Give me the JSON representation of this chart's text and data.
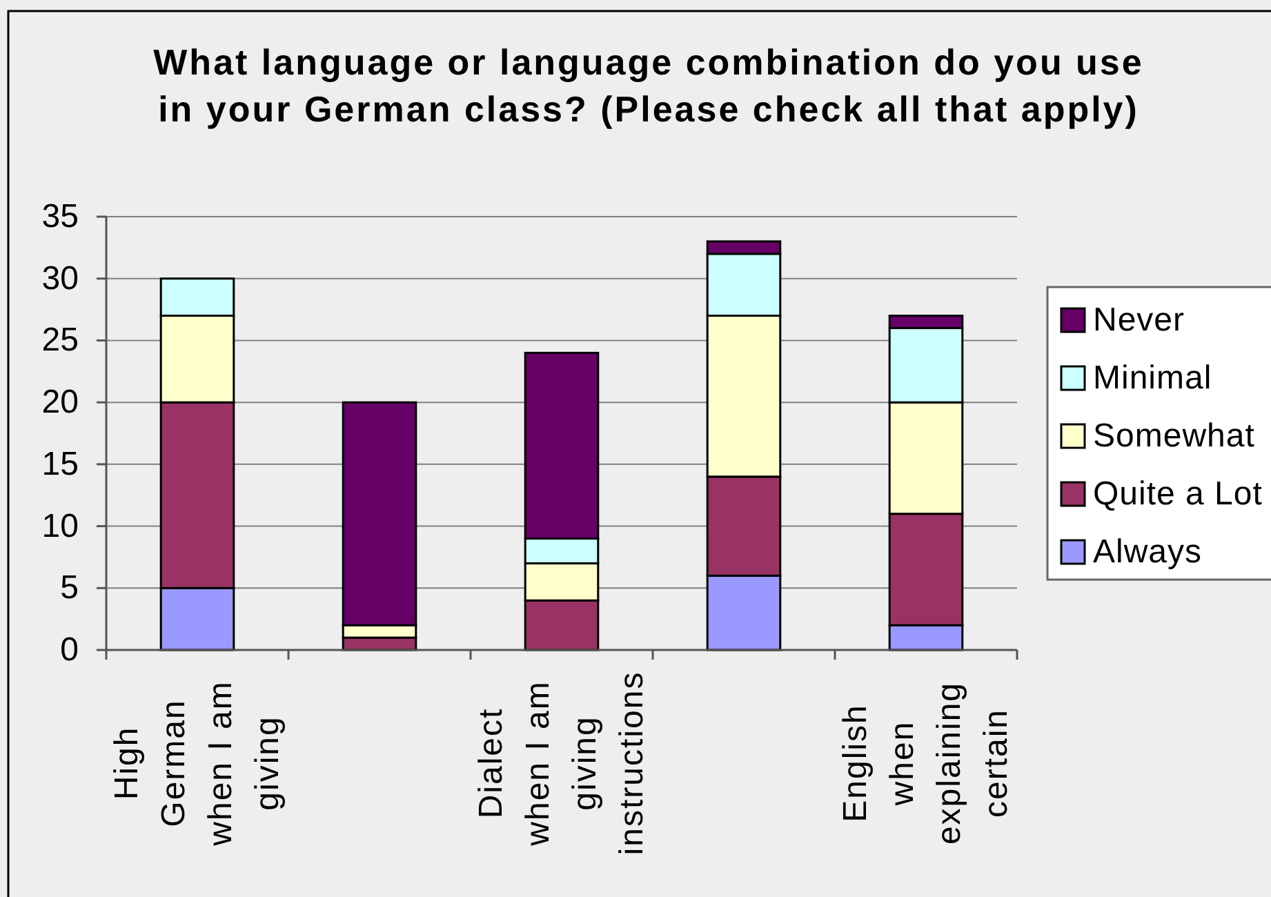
{
  "chart_data": {
    "type": "bar",
    "title": "What language or language combination do you use in your German class? (Please check all that apply)",
    "categories": [
      "High German when I am giving",
      null,
      "Dialect when I am giving instructions",
      null,
      "English when explaining certain"
    ],
    "stacked": true,
    "series": [
      {
        "name": "Always",
        "color": "#9999ff",
        "values": [
          5,
          0,
          0,
          6,
          2
        ]
      },
      {
        "name": "Quite a Lot",
        "color": "#993366",
        "values": [
          15,
          1,
          4,
          8,
          9
        ]
      },
      {
        "name": "Somewhat",
        "color": "#ffffcc",
        "values": [
          7,
          1,
          3,
          13,
          9
        ]
      },
      {
        "name": "Minimal",
        "color": "#ccffff",
        "values": [
          3,
          0,
          2,
          5,
          6
        ]
      },
      {
        "name": "Never",
        "color": "#660066",
        "values": [
          0,
          18,
          15,
          1,
          1
        ]
      }
    ],
    "ylim": [
      0,
      35
    ],
    "yticks": [
      0,
      5,
      10,
      15,
      20,
      25,
      30,
      35
    ],
    "grid": "y",
    "legend": "right"
  }
}
